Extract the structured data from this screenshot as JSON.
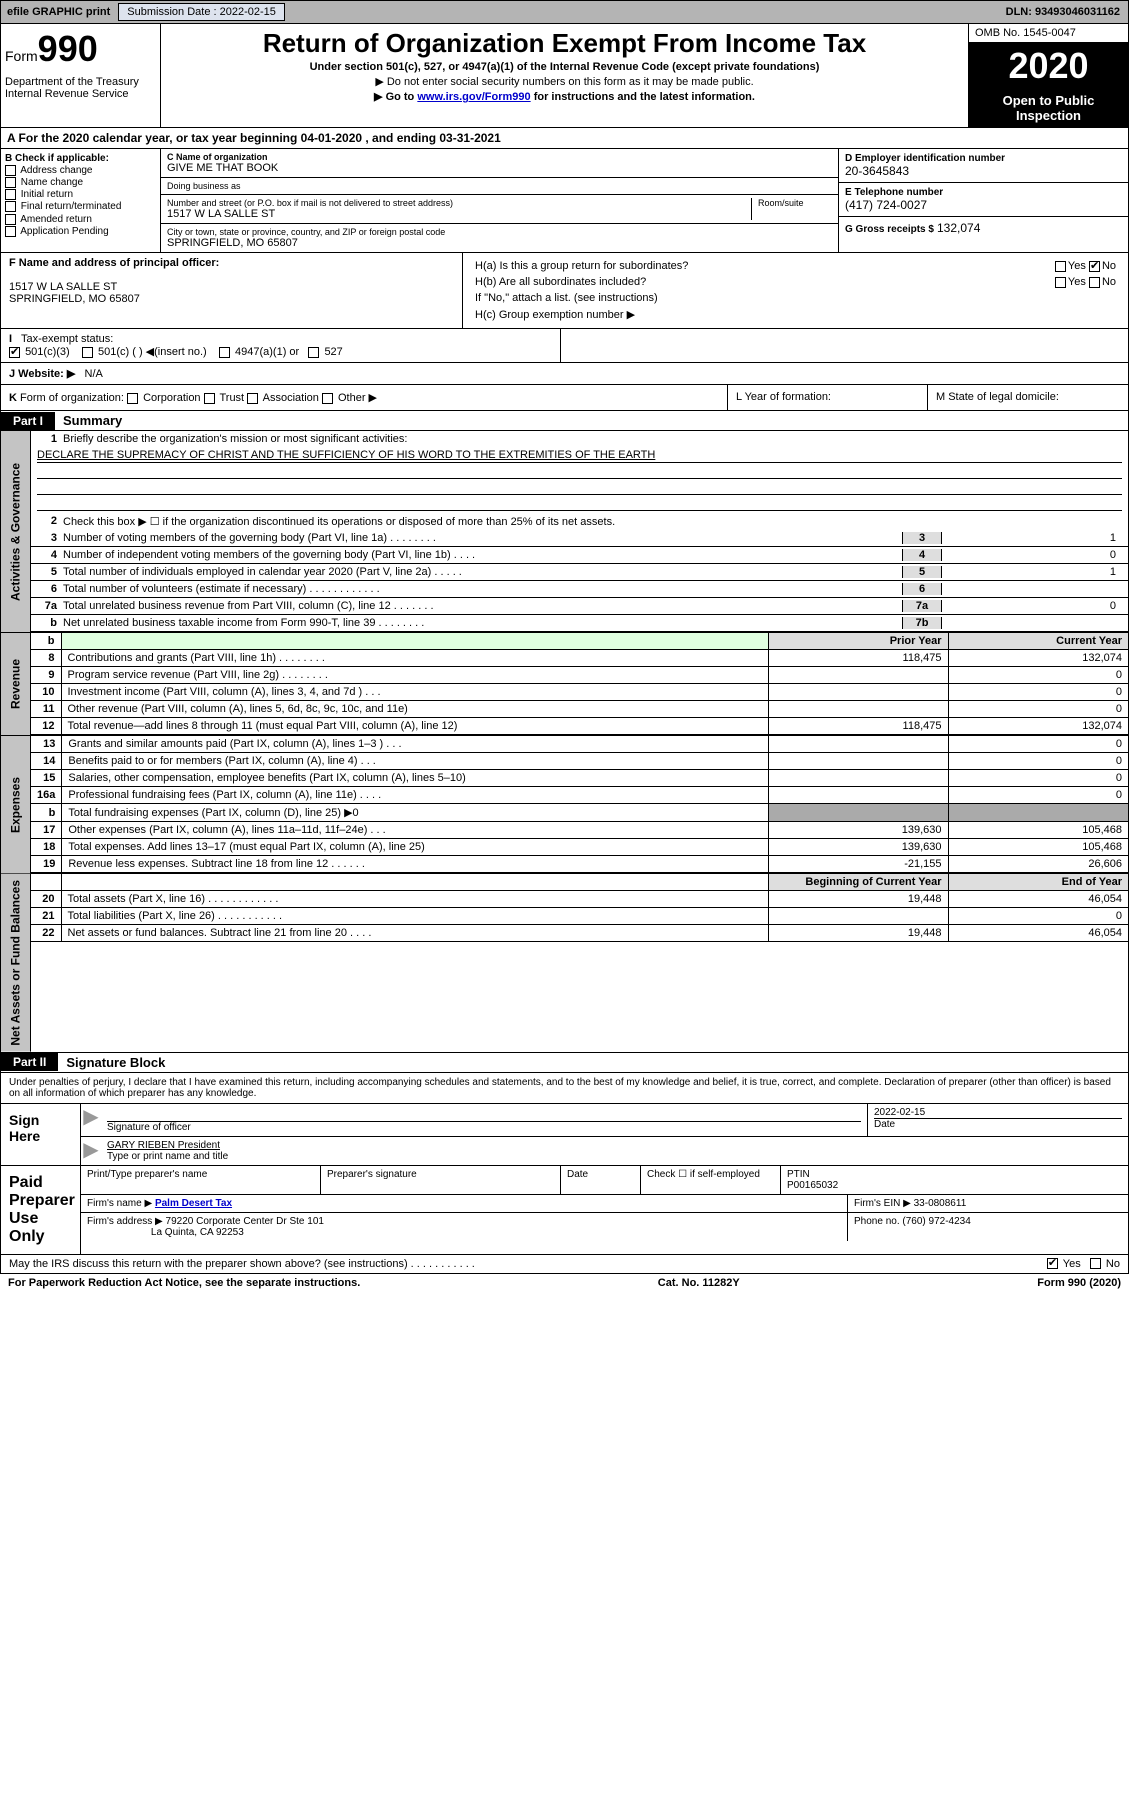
{
  "topbar": {
    "efile": "efile GRAPHIC print",
    "submission_label": "Submission Date : 2022-02-15",
    "dln": "DLN: 93493046031162"
  },
  "header": {
    "form_word": "Form",
    "form_num": "990",
    "title": "Return of Organization Exempt From Income Tax",
    "subtitle1": "Under section 501(c), 527, or 4947(a)(1) of the Internal Revenue Code (except private foundations)",
    "subtitle2": "▶ Do not enter social security numbers on this form as it may be made public.",
    "subtitle3_pre": "▶ Go to ",
    "subtitle3_link": "www.irs.gov/Form990",
    "subtitle3_post": " for instructions and the latest information.",
    "dept": "Department of the Treasury\nInternal Revenue Service",
    "omb": "OMB No. 1545-0047",
    "year": "2020",
    "open": "Open to Public Inspection"
  },
  "rowA": "A For the 2020 calendar year, or tax year beginning 04-01-2020    , and ending 03-31-2021",
  "blockB": {
    "label": "B Check if applicable:",
    "items": [
      "Address change",
      "Name change",
      "Initial return",
      "Final return/terminated",
      "Amended return",
      "Application Pending"
    ]
  },
  "blockC": {
    "name_lbl": "C Name of organization",
    "name_val": "GIVE ME THAT BOOK",
    "dba_lbl": "Doing business as",
    "dba_val": "",
    "addr_lbl": "Number and street (or P.O. box if mail is not delivered to street address)",
    "room_lbl": "Room/suite",
    "addr_val": "1517 W LA SALLE ST",
    "city_lbl": "City or town, state or province, country, and ZIP or foreign postal code",
    "city_val": "SPRINGFIELD, MO  65807"
  },
  "blockD": {
    "lbl": "D Employer identification number",
    "val": "20-3645843"
  },
  "blockE": {
    "lbl": "E Telephone number",
    "val": "(417) 724-0027"
  },
  "blockG": {
    "lbl": "G Gross receipts $",
    "val": "132,074"
  },
  "blockF": {
    "lbl": "F Name and address of principal officer:",
    "addr1": "1517 W LA SALLE ST",
    "addr2": "SPRINGFIELD, MO  65807"
  },
  "blockH": {
    "a": "H(a)  Is this a group return for subordinates?",
    "b": "H(b)  Are all subordinates included?",
    "b_note": "If \"No,\" attach a list. (see instructions)",
    "c": "H(c)  Group exemption number ▶",
    "yes": "Yes",
    "no": "No"
  },
  "rowI": {
    "label": "Tax-exempt status:",
    "o1": "501(c)(3)",
    "o2": "501(c) (  ) ◀(insert no.)",
    "o3": "4947(a)(1) or",
    "o4": "527"
  },
  "rowJ": {
    "lbl": "J  Website: ▶",
    "val": "N/A"
  },
  "rowK": "K Form of organization:    Corporation    Trust    Association    Other ▶",
  "rowL": "L Year of formation:",
  "rowM": "M State of legal domicile:",
  "part1": {
    "hdr": "Part I",
    "title": "Summary",
    "sidecap_gov": "Activities & Governance",
    "sidecap_rev": "Revenue",
    "sidecap_exp": "Expenses",
    "sidecap_net": "Net Assets or Fund Balances",
    "l1": "Briefly describe the organization's mission or most significant activities:",
    "l1_val": "DECLARE THE SUPREMACY OF CHRIST AND THE SUFFICIENCY OF HIS WORD TO THE EXTREMITIES OF THE EARTH",
    "l2": "Check this box ▶ ☐ if the organization discontinued its operations or disposed of more than 25% of its net assets.",
    "rows_gov": [
      {
        "n": "3",
        "t": "Number of voting members of the governing body (Part VI, line 1a)   .   .   .   .   .   .   .   .",
        "b": "3",
        "v": "1"
      },
      {
        "n": "4",
        "t": "Number of independent voting members of the governing body (Part VI, line 1b)   .   .   .   .",
        "b": "4",
        "v": "0"
      },
      {
        "n": "5",
        "t": "Total number of individuals employed in calendar year 2020 (Part V, line 2a)   .   .   .   .   .",
        "b": "5",
        "v": "1"
      },
      {
        "n": "6",
        "t": "Total number of volunteers (estimate if necessary)   .   .   .   .   .   .   .   .   .   .   .   .",
        "b": "6",
        "v": ""
      },
      {
        "n": "7a",
        "t": "Total unrelated business revenue from Part VIII, column (C), line 12   .   .   .   .   .   .   .",
        "b": "7a",
        "v": "0"
      },
      {
        "n": "b",
        "t": "Net unrelated business taxable income from Form 990-T, line 39   .   .   .   .   .   .   .   .",
        "b": "7b",
        "v": ""
      }
    ],
    "hdr_py": "Prior Year",
    "hdr_cy": "Current Year",
    "rows_rev": [
      {
        "n": "8",
        "t": "Contributions and grants (Part VIII, line 1h)   .   .   .   .   .   .   .   .",
        "py": "118,475",
        "cy": "132,074"
      },
      {
        "n": "9",
        "t": "Program service revenue (Part VIII, line 2g)   .   .   .   .   .   .   .   .",
        "py": "",
        "cy": "0"
      },
      {
        "n": "10",
        "t": "Investment income (Part VIII, column (A), lines 3, 4, and 7d )   .   .   .",
        "py": "",
        "cy": "0"
      },
      {
        "n": "11",
        "t": "Other revenue (Part VIII, column (A), lines 5, 6d, 8c, 9c, 10c, and 11e)",
        "py": "",
        "cy": "0"
      },
      {
        "n": "12",
        "t": "Total revenue—add lines 8 through 11 (must equal Part VIII, column (A), line 12)",
        "py": "118,475",
        "cy": "132,074"
      }
    ],
    "rows_exp": [
      {
        "n": "13",
        "t": "Grants and similar amounts paid (Part IX, column (A), lines 1–3 )   .   .   .",
        "py": "",
        "cy": "0"
      },
      {
        "n": "14",
        "t": "Benefits paid to or for members (Part IX, column (A), line 4)   .   .   .",
        "py": "",
        "cy": "0"
      },
      {
        "n": "15",
        "t": "Salaries, other compensation, employee benefits (Part IX, column (A), lines 5–10)",
        "py": "",
        "cy": "0"
      },
      {
        "n": "16a",
        "t": "Professional fundraising fees (Part IX, column (A), line 11e)   .   .   .   .",
        "py": "",
        "cy": "0"
      },
      {
        "n": "b",
        "t": "Total fundraising expenses (Part IX, column (D), line 25) ▶0",
        "py": "GREY",
        "cy": "GREY"
      },
      {
        "n": "17",
        "t": "Other expenses (Part IX, column (A), lines 11a–11d, 11f–24e)   .   .   .",
        "py": "139,630",
        "cy": "105,468"
      },
      {
        "n": "18",
        "t": "Total expenses. Add lines 13–17 (must equal Part IX, column (A), line 25)",
        "py": "139,630",
        "cy": "105,468"
      },
      {
        "n": "19",
        "t": "Revenue less expenses. Subtract line 18 from line 12   .   .   .   .   .   .",
        "py": "-21,155",
        "cy": "26,606"
      }
    ],
    "hdr_boy": "Beginning of Current Year",
    "hdr_eoy": "End of Year",
    "rows_net": [
      {
        "n": "20",
        "t": "Total assets (Part X, line 16)   .   .   .   .   .   .   .   .   .   .   .   .",
        "py": "19,448",
        "cy": "46,054"
      },
      {
        "n": "21",
        "t": "Total liabilities (Part X, line 26)   .   .   .   .   .   .   .   .   .   .   .",
        "py": "",
        "cy": "0"
      },
      {
        "n": "22",
        "t": "Net assets or fund balances. Subtract line 21 from line 20   .   .   .   .",
        "py": "19,448",
        "cy": "46,054"
      }
    ]
  },
  "part2": {
    "hdr": "Part II",
    "title": "Signature Block",
    "decl": "Under penalties of perjury, I declare that I have examined this return, including accompanying schedules and statements, and to the best of my knowledge and belief, it is true, correct, and complete. Declaration of preparer (other than officer) is based on all information of which preparer has any knowledge."
  },
  "sign": {
    "here": "Sign Here",
    "sig_officer": "Signature of officer",
    "date": "Date",
    "date_val": "2022-02-15",
    "name": "GARY RIEBEN  President",
    "type_print": "Type or print name and title"
  },
  "prep": {
    "label": "Paid Preparer Use Only",
    "print_name": "Print/Type preparer's name",
    "prep_sig": "Preparer's signature",
    "date": "Date",
    "check_self": "Check ☐ if self-employed",
    "ptin_lbl": "PTIN",
    "ptin_val": "P00165032",
    "firm_name_lbl": "Firm's name    ▶",
    "firm_name_val": "Palm Desert Tax",
    "firm_ein_lbl": "Firm's EIN ▶",
    "firm_ein_val": "33-0808611",
    "firm_addr_lbl": "Firm's address ▶",
    "firm_addr_val1": "79220 Corporate Center Dr Ste 101",
    "firm_addr_val2": "La Quinta, CA  92253",
    "phone_lbl": "Phone no.",
    "phone_val": "(760) 972-4234"
  },
  "irs_discuss": "May the IRS discuss this return with the preparer shown above? (see instructions)   .   .   .   .   .   .   .   .   .   .   .",
  "footer": {
    "left": "For Paperwork Reduction Act Notice, see the separate instructions.",
    "mid": "Cat. No. 11282Y",
    "right": "Form 990 (2020)"
  }
}
